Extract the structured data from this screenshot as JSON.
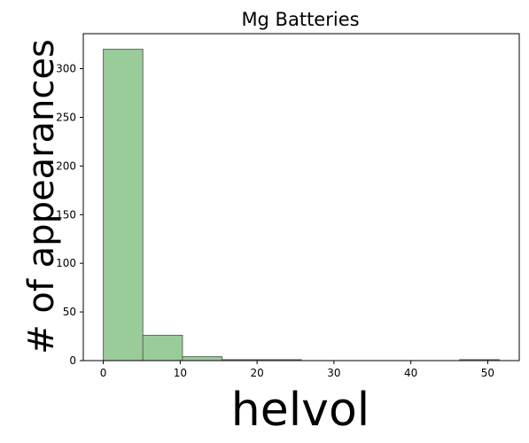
{
  "chart_data": {
    "type": "bar",
    "title": "Mg Batteries",
    "xlabel": "helvol",
    "ylabel": "# of appearances",
    "bins": [
      {
        "x0": 0.0,
        "x1": 5.15,
        "count": 320
      },
      {
        "x0": 5.15,
        "x1": 10.3,
        "count": 26
      },
      {
        "x0": 10.3,
        "x1": 15.45,
        "count": 4
      },
      {
        "x0": 15.45,
        "x1": 20.6,
        "count": 1
      },
      {
        "x0": 20.6,
        "x1": 25.75,
        "count": 1
      },
      {
        "x0": 25.75,
        "x1": 30.9,
        "count": 0
      },
      {
        "x0": 30.9,
        "x1": 36.05,
        "count": 0
      },
      {
        "x0": 36.05,
        "x1": 41.2,
        "count": 0
      },
      {
        "x0": 41.2,
        "x1": 46.35,
        "count": 0
      },
      {
        "x0": 46.35,
        "x1": 51.5,
        "count": 1
      }
    ],
    "xticks": [
      0,
      10,
      20,
      30,
      40,
      50
    ],
    "yticks": [
      0,
      50,
      100,
      150,
      200,
      250,
      300
    ],
    "xlim": [
      -2.6,
      54.1
    ],
    "ylim": [
      0,
      336
    ],
    "bar_color": "#99cc99",
    "edge_color": "#666666",
    "grid": false,
    "legend": "none"
  }
}
